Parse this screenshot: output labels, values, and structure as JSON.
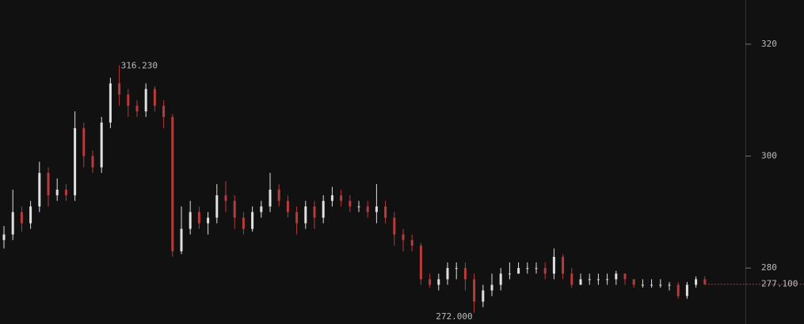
{
  "chart_data": {
    "type": "candlestick",
    "up_color": "#e0e0e0",
    "down_color": "#b83a3a",
    "ylim": [
      270,
      327.9
    ],
    "yticks": [
      280,
      300,
      320
    ],
    "open": [
      285,
      286,
      290,
      288,
      291,
      297,
      293,
      294,
      293,
      305,
      300,
      298,
      306,
      313,
      311,
      309,
      308,
      312,
      309,
      307,
      283,
      287,
      290,
      288,
      289,
      293,
      292,
      289,
      287,
      290,
      291,
      294,
      292,
      290,
      288,
      291,
      289,
      292,
      293,
      292,
      291,
      291,
      290,
      291,
      289,
      286,
      285,
      284,
      278,
      277,
      278,
      280,
      280,
      278,
      274,
      276,
      277,
      279,
      279,
      280,
      280,
      280,
      279,
      282,
      279,
      277,
      278,
      278,
      278,
      278,
      279,
      278,
      277,
      277,
      277,
      277,
      277,
      275,
      277,
      278
    ],
    "high": [
      287.5,
      294,
      291,
      292,
      299,
      298,
      296,
      295,
      308,
      306,
      301,
      307,
      314,
      316.23,
      312,
      310,
      313,
      312.5,
      310,
      307.5,
      291,
      292,
      291,
      290,
      295,
      295.5,
      293,
      290,
      291,
      292,
      297,
      295,
      293,
      291,
      292,
      292,
      293,
      294.5,
      294,
      293,
      292,
      292,
      295,
      292,
      290,
      287,
      286,
      284.5,
      279,
      279,
      281,
      281,
      281,
      279,
      277,
      279,
      280,
      281,
      281,
      281,
      281,
      281,
      283.5,
      282.5,
      280,
      279,
      279,
      279,
      279,
      279.5,
      279,
      278,
      278,
      278,
      278,
      277.5,
      277.5,
      277.5,
      278.5,
      278.5
    ],
    "low": [
      283.5,
      285,
      286.5,
      287,
      290,
      291,
      292,
      292,
      292,
      298,
      297,
      297,
      305,
      309,
      307,
      307,
      307,
      308,
      305,
      282,
      282.5,
      286,
      287,
      286,
      288,
      290,
      287,
      286,
      286.5,
      289,
      290,
      291,
      289,
      286,
      287,
      287,
      288,
      291,
      291,
      290,
      290,
      289,
      288,
      288,
      284,
      283,
      283,
      277,
      276.5,
      276,
      277,
      278,
      276,
      272,
      273,
      275,
      276,
      278,
      279,
      279,
      279,
      278,
      278,
      278,
      276.5,
      277,
      277,
      277,
      277,
      277,
      277,
      276.5,
      276.5,
      276.5,
      276.5,
      276,
      274.5,
      274.5,
      276.5,
      277
    ],
    "close": [
      286,
      290,
      288,
      291,
      297,
      293,
      294,
      293,
      305,
      300,
      298,
      306,
      313,
      311,
      309,
      308,
      312,
      309,
      307,
      283,
      287,
      290,
      288,
      289,
      293,
      292,
      289,
      287,
      290,
      291,
      294,
      292,
      290,
      288,
      291,
      289,
      292,
      293,
      292,
      291,
      291,
      290,
      291,
      289,
      286,
      285,
      284,
      278,
      277,
      278,
      280,
      280,
      278,
      274,
      276,
      277,
      279,
      279,
      280,
      280,
      280,
      279,
      282,
      279,
      277,
      278,
      278,
      278,
      278,
      279,
      278,
      277,
      277,
      277,
      277,
      277,
      275,
      277,
      278,
      277.1
    ],
    "annotations": [
      {
        "value": 316.23,
        "label": "316.230"
      },
      {
        "value": 272,
        "label": "272.000"
      }
    ],
    "last_price": {
      "value": 277.1,
      "label": "277.100"
    }
  }
}
